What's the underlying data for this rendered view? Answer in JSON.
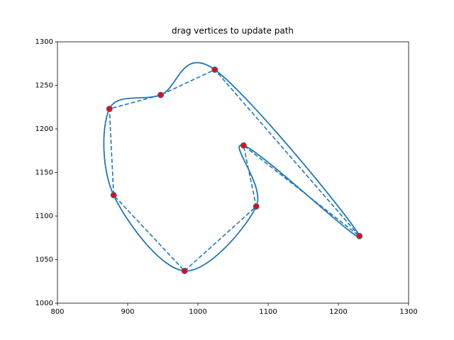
{
  "chart_data": {
    "type": "path",
    "title": "drag vertices to update path",
    "x": [
      981,
      1083,
      1065,
      1230,
      1024,
      947,
      874,
      880
    ],
    "y": [
      1037,
      1111,
      1181,
      1077,
      1268,
      1239,
      1223,
      1124
    ],
    "color": "#1f77b4",
    "marker_color": "#ff0000",
    "xlim": [
      800,
      1300
    ],
    "ylim": [
      1000,
      1300
    ],
    "xticks": [
      800,
      900,
      1000,
      1100,
      1200,
      1300
    ],
    "yticks": [
      1000,
      1050,
      1100,
      1150,
      1200,
      1250,
      1300
    ]
  }
}
